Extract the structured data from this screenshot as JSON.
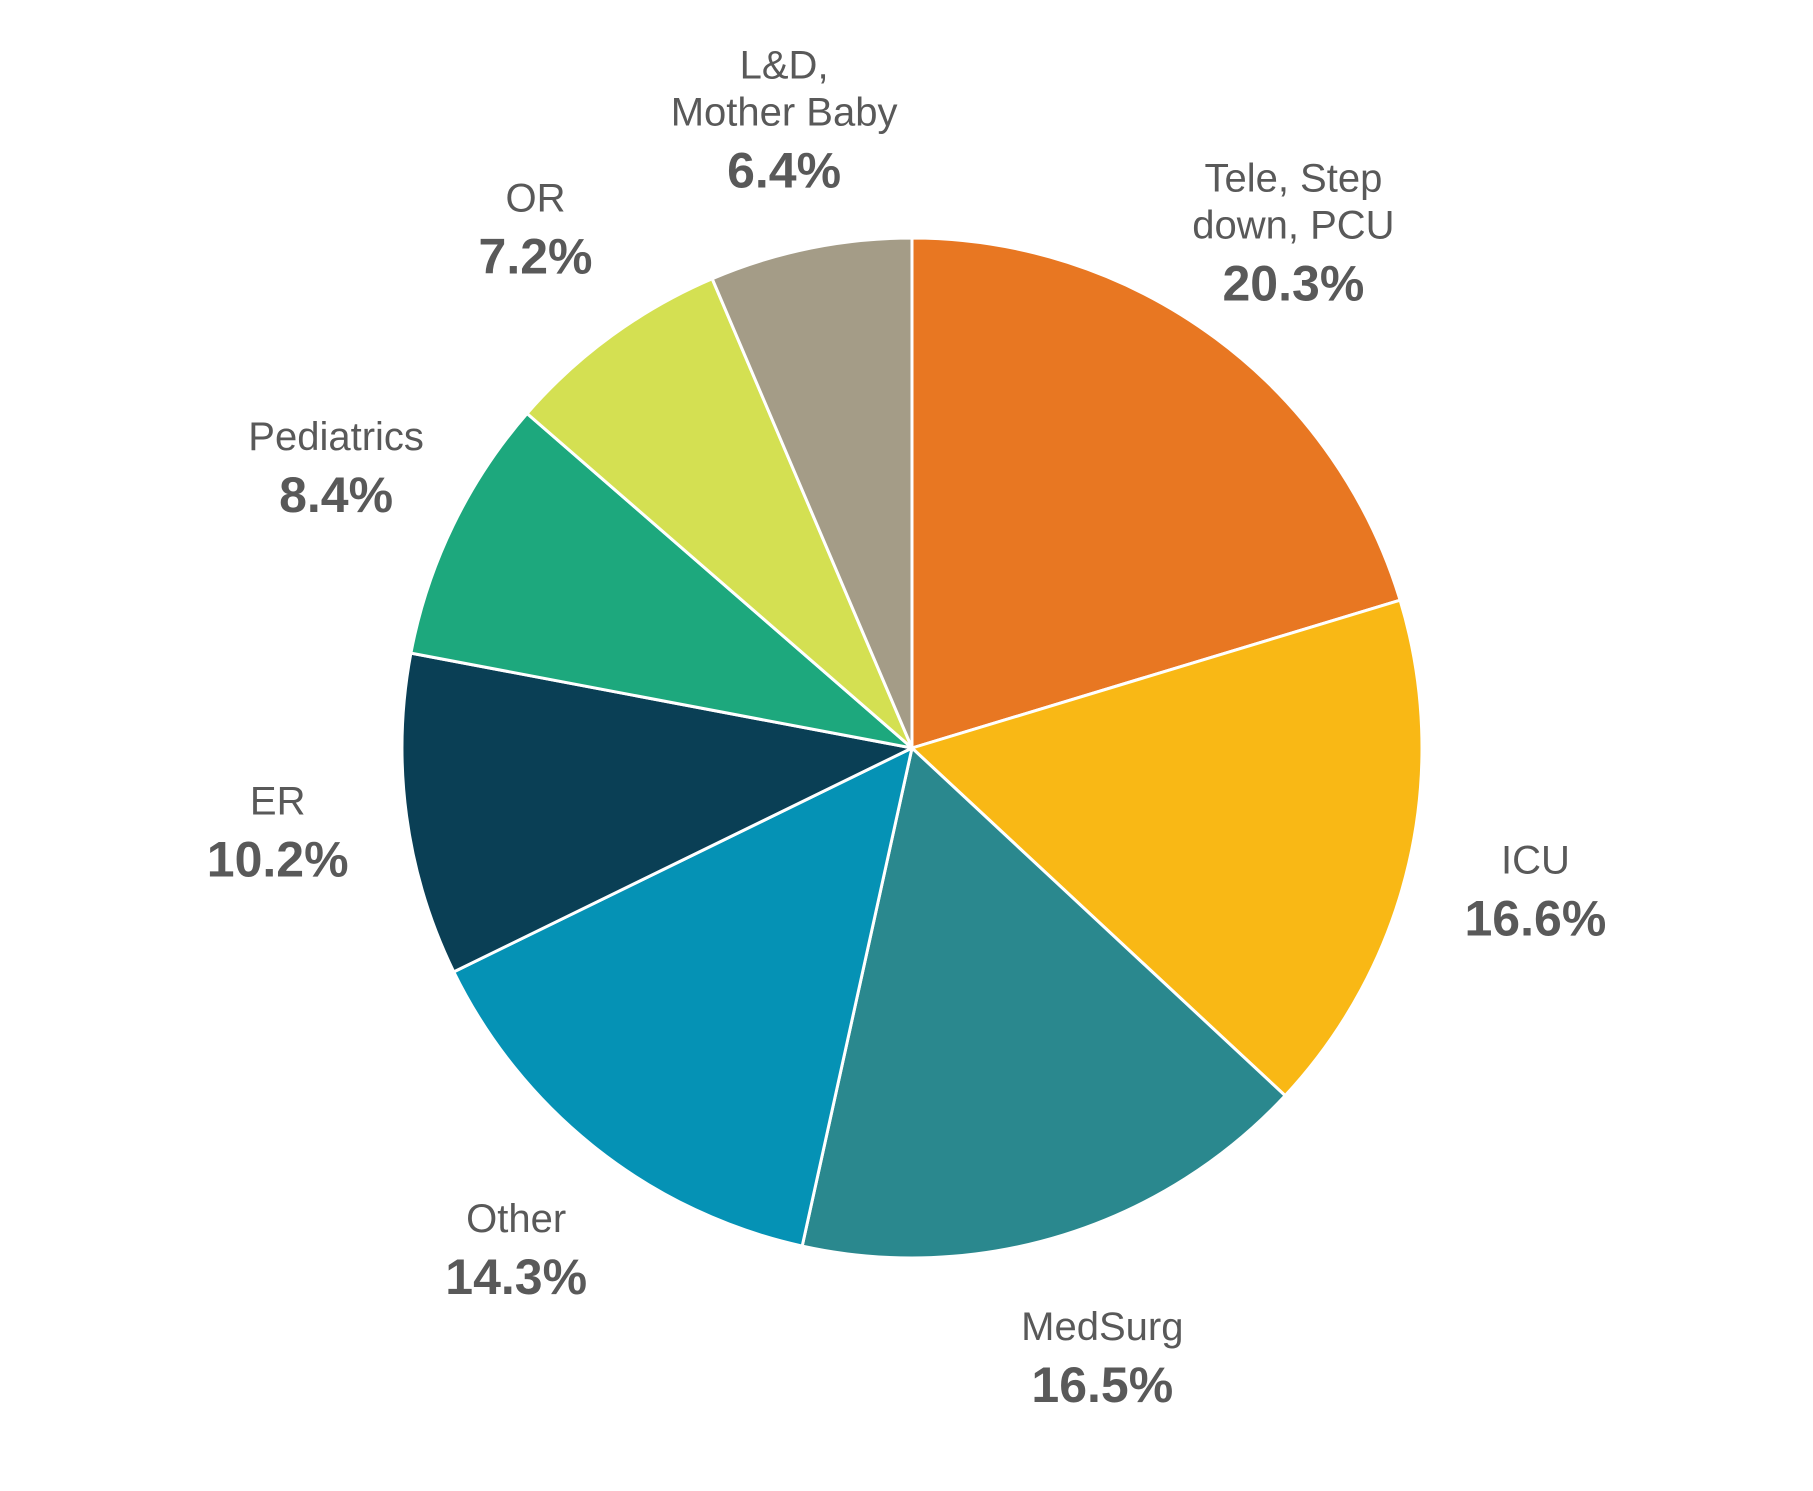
{
  "chart_data": {
    "type": "pie",
    "title": "",
    "slices": [
      {
        "label_lines": [
          "Tele, Step",
          "down, PCU"
        ],
        "value": 20.3,
        "value_label": "20.3%",
        "color": "#E87722"
      },
      {
        "label_lines": [
          "ICU"
        ],
        "value": 16.6,
        "value_label": "16.6%",
        "color": "#F9B815"
      },
      {
        "label_lines": [
          "MedSurg"
        ],
        "value": 16.5,
        "value_label": "16.5%",
        "color": "#2A888E"
      },
      {
        "label_lines": [
          "Other"
        ],
        "value": 14.3,
        "value_label": "14.3%",
        "color": "#0592B5"
      },
      {
        "label_lines": [
          "ER"
        ],
        "value": 10.2,
        "value_label": "10.2%",
        "color": "#0A3F55"
      },
      {
        "label_lines": [
          "Pediatrics"
        ],
        "value": 8.4,
        "value_label": "8.4%",
        "color": "#1DA87D"
      },
      {
        "label_lines": [
          "OR"
        ],
        "value": 7.2,
        "value_label": "7.2%",
        "color": "#D4E052"
      },
      {
        "label_lines": [
          "L&D,",
          "Mother Baby"
        ],
        "value": 6.4,
        "value_label": "6.4%",
        "color": "#A49C87"
      }
    ],
    "start_angle": "12 o'clock",
    "direction": "clockwise",
    "legend": "none",
    "label_color": "#595959",
    "slice_border_color": "#FFFFFF"
  }
}
